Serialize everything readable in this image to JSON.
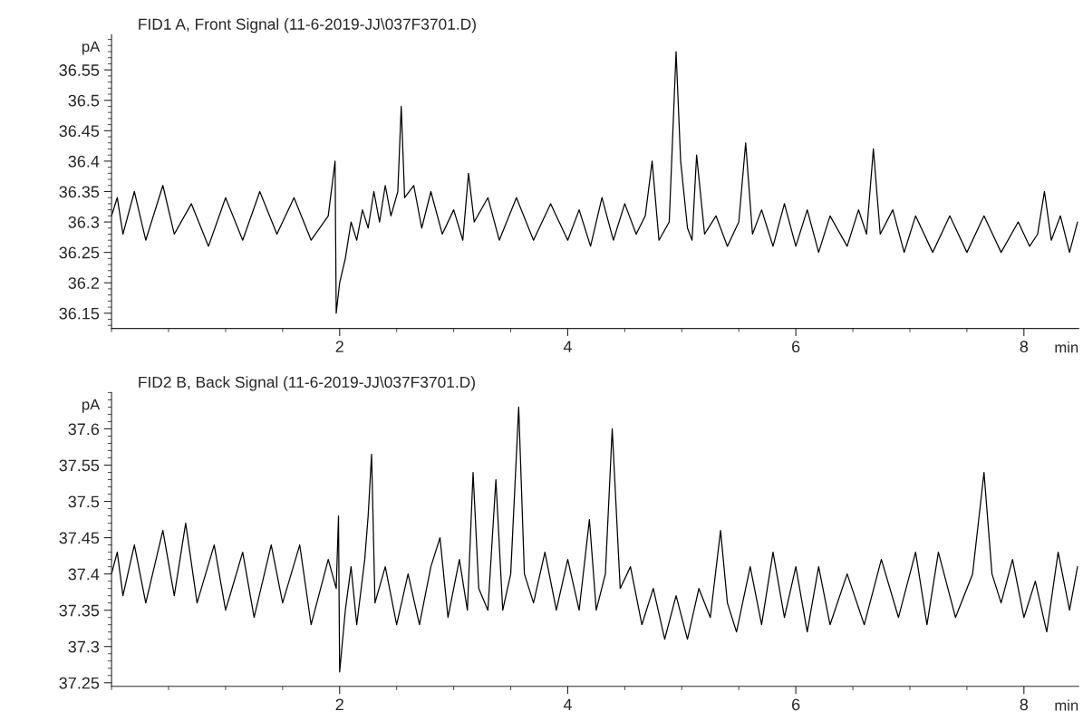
{
  "chart_data": [
    {
      "type": "line",
      "title": "FID1 A, Front Signal (11-6-2019-JJ\\037F3701.D)",
      "xlabel": "min",
      "ylabel": "pA",
      "xlim": [
        0,
        8.48
      ],
      "ylim": [
        36.125,
        36.608
      ],
      "xticks": [
        2,
        4,
        6,
        8
      ],
      "yticks": [
        36.15,
        36.2,
        36.25,
        36.3,
        36.35,
        36.4,
        36.45,
        36.5,
        36.55
      ],
      "grid": false,
      "series": [
        {
          "color": "#000000",
          "x": [
            0.0,
            0.05,
            0.1,
            0.2,
            0.3,
            0.45,
            0.55,
            0.7,
            0.85,
            1.0,
            1.15,
            1.3,
            1.45,
            1.6,
            1.75,
            1.9,
            1.96,
            1.97,
            2.0,
            2.05,
            2.1,
            2.15,
            2.2,
            2.25,
            2.3,
            2.35,
            2.4,
            2.45,
            2.51,
            2.54,
            2.57,
            2.65,
            2.72,
            2.8,
            2.9,
            3.0,
            3.08,
            3.13,
            3.18,
            3.3,
            3.4,
            3.55,
            3.7,
            3.85,
            4.0,
            4.1,
            4.2,
            4.3,
            4.4,
            4.5,
            4.6,
            4.68,
            4.74,
            4.8,
            4.89,
            4.95,
            4.99,
            5.05,
            5.09,
            5.13,
            5.2,
            5.3,
            5.4,
            5.5,
            5.56,
            5.62,
            5.7,
            5.8,
            5.9,
            6.0,
            6.1,
            6.2,
            6.3,
            6.45,
            6.55,
            6.62,
            6.68,
            6.74,
            6.85,
            6.95,
            7.05,
            7.2,
            7.35,
            7.5,
            7.65,
            7.8,
            7.95,
            8.05,
            8.12,
            8.18,
            8.24,
            8.32,
            8.4,
            8.47
          ],
          "values": [
            36.31,
            36.34,
            36.28,
            36.35,
            36.27,
            36.36,
            36.28,
            36.33,
            36.26,
            36.34,
            36.27,
            36.35,
            36.28,
            36.34,
            36.27,
            36.31,
            36.4,
            36.15,
            36.2,
            36.24,
            36.3,
            36.27,
            36.32,
            36.29,
            36.35,
            36.3,
            36.36,
            36.31,
            36.35,
            36.49,
            36.34,
            36.36,
            36.29,
            36.35,
            36.28,
            36.32,
            36.27,
            36.38,
            36.3,
            36.34,
            36.27,
            36.34,
            36.27,
            36.33,
            36.27,
            36.32,
            36.26,
            36.34,
            36.27,
            36.33,
            36.28,
            36.31,
            36.4,
            36.27,
            36.3,
            36.58,
            36.4,
            36.29,
            36.27,
            36.41,
            36.28,
            36.31,
            36.26,
            36.3,
            36.43,
            36.28,
            36.32,
            36.26,
            36.33,
            36.26,
            36.32,
            36.25,
            36.31,
            36.26,
            36.32,
            36.28,
            36.42,
            36.28,
            36.32,
            36.25,
            36.31,
            36.25,
            36.31,
            36.25,
            36.31,
            36.25,
            36.3,
            36.26,
            36.28,
            36.35,
            36.27,
            36.31,
            36.25,
            36.3
          ]
        }
      ]
    },
    {
      "type": "line",
      "title": "FID2 B, Back Signal (11-6-2019-JJ\\037F3701.D)",
      "xlabel": "min",
      "ylabel": "pA",
      "xlim": [
        0,
        8.48
      ],
      "ylim": [
        37.245,
        37.65
      ],
      "xticks": [
        2,
        4,
        6,
        8
      ],
      "yticks": [
        37.25,
        37.3,
        37.35,
        37.4,
        37.45,
        37.5,
        37.55,
        37.6
      ],
      "grid": false,
      "series": [
        {
          "color": "#000000",
          "x": [
            0.0,
            0.05,
            0.1,
            0.2,
            0.3,
            0.45,
            0.55,
            0.65,
            0.75,
            0.9,
            1.0,
            1.15,
            1.25,
            1.4,
            1.5,
            1.65,
            1.75,
            1.9,
            1.97,
            1.99,
            2.0,
            2.05,
            2.1,
            2.15,
            2.22,
            2.25,
            2.28,
            2.31,
            2.4,
            2.5,
            2.6,
            2.7,
            2.8,
            2.88,
            2.95,
            3.05,
            3.12,
            3.17,
            3.22,
            3.3,
            3.37,
            3.43,
            3.5,
            3.57,
            3.62,
            3.7,
            3.8,
            3.9,
            4.0,
            4.1,
            4.19,
            4.25,
            4.33,
            4.39,
            4.46,
            4.55,
            4.65,
            4.75,
            4.85,
            4.95,
            5.05,
            5.15,
            5.25,
            5.34,
            5.4,
            5.48,
            5.6,
            5.7,
            5.8,
            5.9,
            6.0,
            6.1,
            6.2,
            6.3,
            6.45,
            6.6,
            6.75,
            6.9,
            7.05,
            7.15,
            7.25,
            7.4,
            7.55,
            7.65,
            7.72,
            7.8,
            7.9,
            8.0,
            8.1,
            8.2,
            8.3,
            8.4,
            8.47
          ],
          "values": [
            37.4,
            37.43,
            37.37,
            37.44,
            37.36,
            37.46,
            37.37,
            37.47,
            37.36,
            37.44,
            37.35,
            37.43,
            37.34,
            37.44,
            37.36,
            37.44,
            37.33,
            37.42,
            37.38,
            37.48,
            37.265,
            37.35,
            37.41,
            37.33,
            37.42,
            37.48,
            37.565,
            37.36,
            37.41,
            37.33,
            37.4,
            37.33,
            37.41,
            37.45,
            37.34,
            37.42,
            37.35,
            37.54,
            37.38,
            37.35,
            37.53,
            37.35,
            37.4,
            37.63,
            37.4,
            37.36,
            37.43,
            37.35,
            37.42,
            37.35,
            37.475,
            37.35,
            37.4,
            37.6,
            37.38,
            37.41,
            37.33,
            37.38,
            37.31,
            37.37,
            37.31,
            37.38,
            37.34,
            37.46,
            37.36,
            37.32,
            37.41,
            37.33,
            37.43,
            37.34,
            37.41,
            37.32,
            37.41,
            37.33,
            37.4,
            37.33,
            37.42,
            37.34,
            37.43,
            37.33,
            37.43,
            37.34,
            37.4,
            37.54,
            37.4,
            37.36,
            37.42,
            37.34,
            37.39,
            37.32,
            37.43,
            37.35,
            37.41
          ]
        }
      ]
    }
  ]
}
